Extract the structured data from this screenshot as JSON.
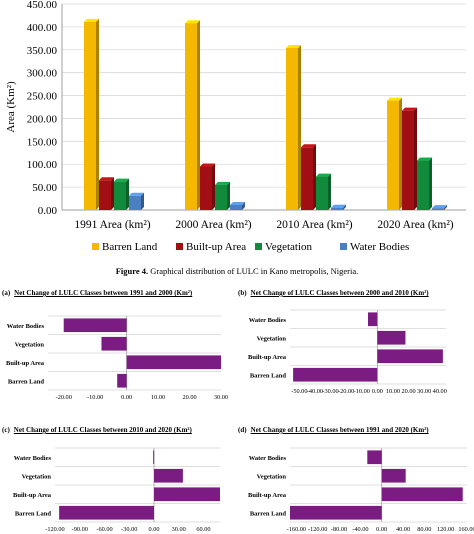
{
  "figure": {
    "caption_label": "Figure 4.",
    "caption_text": " Graphical distribution of LULC in Kano metropolis, Nigeria."
  },
  "colors": {
    "barren": "#F5B800",
    "builtup": "#A10F14",
    "vegetation": "#118A3C",
    "water": "#4A7FC1",
    "net_bar": "#7B1C82"
  },
  "chart_data": [
    {
      "type": "bar",
      "title": "",
      "xlabel": "",
      "ylabel": "Area (Km²)",
      "ylim": [
        0,
        450
      ],
      "yticks": [
        "0.00",
        "50.00",
        "100.00",
        "150.00",
        "200.00",
        "250.00",
        "300.00",
        "350.00",
        "400.00",
        "450.00"
      ],
      "categories": [
        "1991 Area (km²)",
        "2000 Area (km²)",
        "2010 Area (km²)",
        "2020 Area (km²)"
      ],
      "series": [
        {
          "name": "Barren Land",
          "values": [
            411,
            408,
            354,
            239
          ]
        },
        {
          "name": "Built-up Area",
          "values": [
            65,
            95,
            137,
            217
          ]
        },
        {
          "name": "Vegetation",
          "values": [
            62,
            55,
            73,
            108
          ]
        },
        {
          "name": "Water Bodies",
          "values": [
            31,
            11,
            5,
            4
          ]
        }
      ],
      "legend_position": "bottom",
      "grid": true
    },
    {
      "type": "bar",
      "orientation": "horizontal",
      "panel_label": "(a)",
      "title": "Net Change of LULC Classes between 1991 and 2000 (Km²)",
      "categories": [
        "Water Bodies",
        "Vegetation",
        "Built-up Area",
        "Barren Land"
      ],
      "values": [
        -20,
        -8,
        30,
        -3
      ],
      "xlim": [
        -25,
        30
      ],
      "xticks": [
        "-20.00",
        "-10.00",
        "0.00",
        "10.00",
        "20.00",
        "30.00"
      ],
      "tick_values": [
        -20,
        -10,
        0,
        10,
        20,
        30
      ]
    },
    {
      "type": "bar",
      "orientation": "horizontal",
      "panel_label": "(b)",
      "title": "Net Change of LULC Classes between 2000 and 2010 (Km²)",
      "categories": [
        "Water Bodies",
        "Vegetation",
        "Built-up Area",
        "Barren Land"
      ],
      "values": [
        -6,
        18,
        42,
        -54
      ],
      "xlim": [
        -56,
        44
      ],
      "xticks": [
        "-50.00",
        "-40.00",
        "-30.00",
        "-20.00",
        "-10.00",
        "0.00",
        "10.00",
        "20.00",
        "30.00",
        "40.00"
      ],
      "tick_values": [
        -50,
        -40,
        -30,
        -20,
        -10,
        0,
        10,
        20,
        30,
        40
      ]
    },
    {
      "type": "bar",
      "orientation": "horizontal",
      "panel_label": "(c)",
      "title": "Net Change of LULC Classes between 2010 and 2020 (Km²)",
      "categories": [
        "Water Bodies",
        "Vegetation",
        "Built-up Area",
        "Barren Land"
      ],
      "values": [
        -1,
        35,
        80,
        -115
      ],
      "xlim": [
        -120,
        80
      ],
      "xticks": [
        "-120.00",
        "-90.00",
        "-60.00",
        "-30.00",
        "0.00",
        "30.00",
        "60.00"
      ],
      "tick_values": [
        -120,
        -90,
        -60,
        -30,
        0,
        30,
        60
      ]
    },
    {
      "type": "bar",
      "orientation": "horizontal",
      "panel_label": "(d)",
      "title": "Net Change of LULC Classes between 1991 and 2020 (Km²)",
      "categories": [
        "Water Bodies",
        "Vegetation",
        "Built-up Area",
        "Barren Land"
      ],
      "values": [
        -27,
        45,
        152,
        -172
      ],
      "xlim": [
        -172,
        160
      ],
      "xticks": [
        "-160.00",
        "-120.00",
        "-80.00",
        "-40.00",
        "0.00",
        "40.00",
        "80.00",
        "120.00",
        "160.00"
      ],
      "tick_values": [
        -160,
        -120,
        -80,
        -40,
        0,
        40,
        80,
        120,
        160
      ]
    }
  ]
}
